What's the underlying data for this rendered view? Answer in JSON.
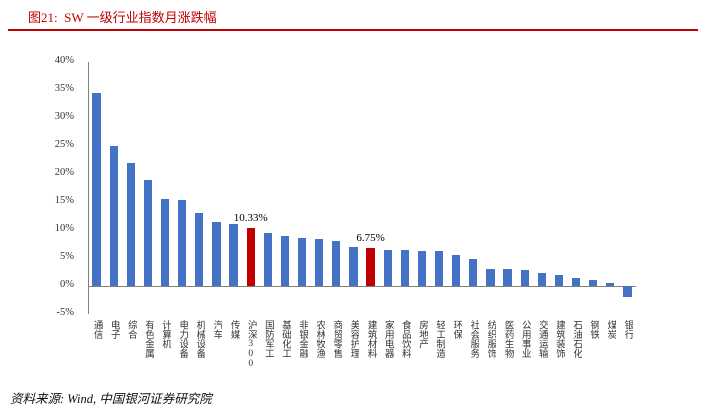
{
  "header": {
    "title": "图21:  SW 一级行业指数月涨跌幅",
    "accent_color": "#C00000"
  },
  "footer": {
    "source": "资料来源: Wind, 中国银河证券研究院"
  },
  "chart_data": {
    "type": "bar",
    "title": "SW 一级行业指数月涨跌幅",
    "categories": [
      "通信",
      "电子",
      "综合",
      "有色金属",
      "计算机",
      "电力设备",
      "机械设备",
      "汽车",
      "传媒",
      "沪深300",
      "国防军工",
      "基础化工",
      "非银金融",
      "农林牧渔",
      "商贸零售",
      "美容护理",
      "建筑材料",
      "家用电器",
      "食品饮料",
      "房地产",
      "轻工制造",
      "环保",
      "社会服务",
      "纺织服饰",
      "医药生物",
      "公用事业",
      "交通运输",
      "建筑装饰",
      "石油石化",
      "钢铁",
      "煤炭",
      "银行"
    ],
    "values": [
      34.5,
      25.0,
      22.0,
      19.0,
      15.5,
      15.3,
      13.0,
      11.5,
      11.0,
      10.33,
      9.5,
      9.0,
      8.6,
      8.4,
      8.0,
      7.0,
      6.75,
      6.5,
      6.4,
      6.3,
      6.3,
      5.5,
      4.8,
      3.0,
      3.0,
      2.8,
      2.4,
      2.0,
      1.4,
      1.0,
      0.5,
      -2.0
    ],
    "bar_color": "#4472C4",
    "highlight_color": "#C00000",
    "highlight_indices": [
      9,
      16
    ],
    "annotations": [
      {
        "index": 9,
        "text": "10.33%"
      },
      {
        "index": 16,
        "text": "6.75%"
      }
    ],
    "ylim": [
      -5,
      40
    ],
    "yticks": [
      40,
      35,
      30,
      25,
      20,
      15,
      10,
      5,
      0,
      -5
    ],
    "ytick_suffix": "%",
    "grid": false,
    "legend": "none",
    "xlabel": "",
    "ylabel": ""
  }
}
